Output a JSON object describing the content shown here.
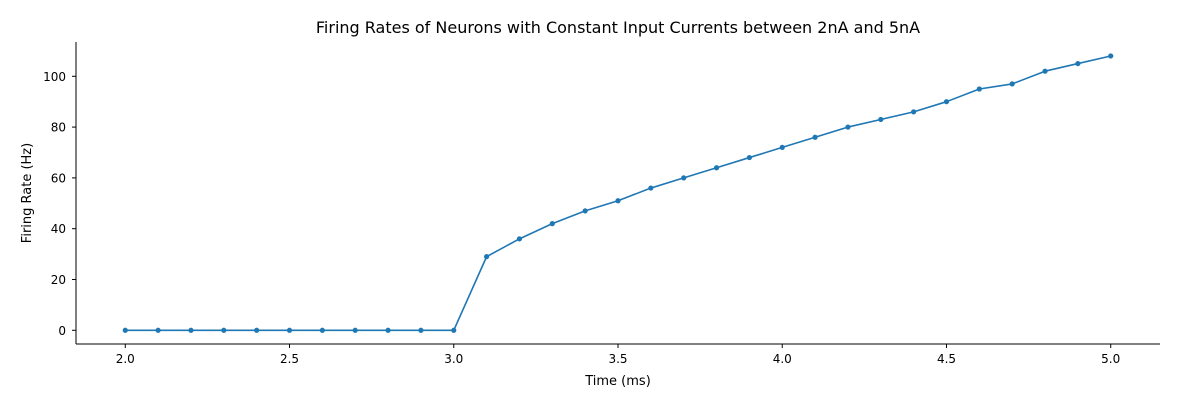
{
  "chart_data": {
    "type": "line",
    "title": "Firing Rates of Neurons with Constant Input Currents between 2nA and 5nA",
    "xlabel": "Time (ms)",
    "ylabel": "Firing Rate (Hz)",
    "xlim": [
      1.85,
      5.15
    ],
    "ylim": [
      -5.4,
      113.5
    ],
    "x_ticks": [
      2.0,
      2.5,
      3.0,
      3.5,
      4.0,
      4.5,
      5.0
    ],
    "x_tick_labels": [
      "2.0",
      "2.5",
      "3.0",
      "3.5",
      "4.0",
      "4.5",
      "5.0"
    ],
    "y_ticks": [
      0,
      20,
      40,
      60,
      80,
      100
    ],
    "y_tick_labels": [
      "0",
      "20",
      "40",
      "60",
      "80",
      "100"
    ],
    "grid": false,
    "series": [
      {
        "color": "#1f77b4",
        "marker": "circle",
        "x": [
          2.0,
          2.1,
          2.2,
          2.3,
          2.4,
          2.5,
          2.6,
          2.7,
          2.8,
          2.9,
          3.0,
          3.1,
          3.2,
          3.3,
          3.4,
          3.5,
          3.6,
          3.7,
          3.8,
          3.9,
          4.0,
          4.1,
          4.2,
          4.3,
          4.4,
          4.5,
          4.6,
          4.7,
          4.8,
          4.9,
          5.0
        ],
        "y": [
          0,
          0,
          0,
          0,
          0,
          0,
          0,
          0,
          0,
          0,
          0,
          29,
          36,
          42,
          47,
          51,
          56,
          60,
          64,
          68,
          72,
          76,
          80,
          83,
          86,
          90,
          95,
          97,
          102,
          105,
          108
        ]
      }
    ]
  }
}
